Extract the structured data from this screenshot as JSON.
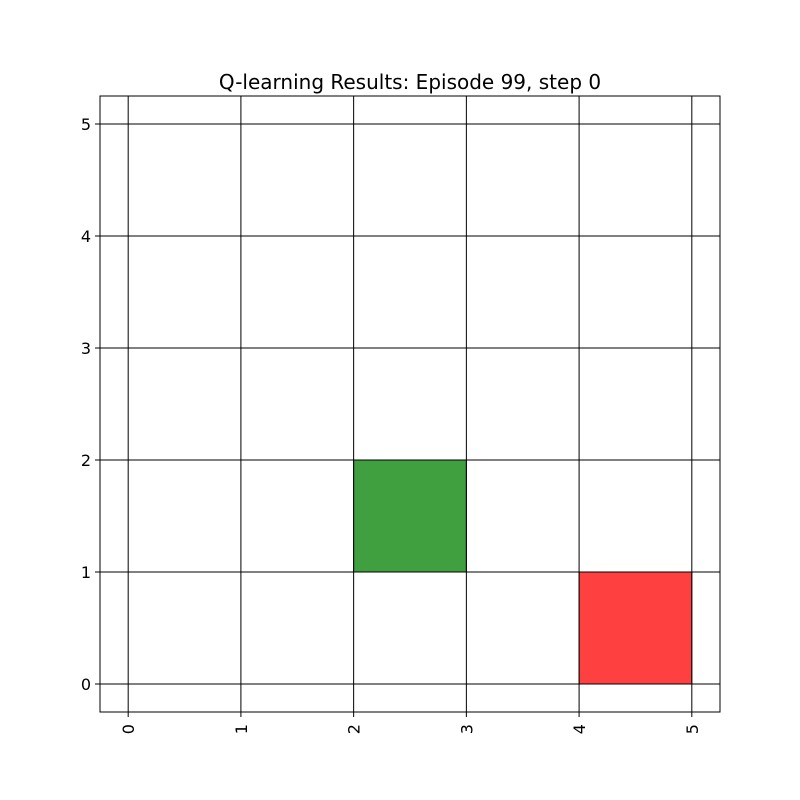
{
  "chart_data": {
    "type": "heatmap",
    "title": "Q-learning Results: Episode 99, step 0",
    "xlabel": "",
    "ylabel": "",
    "xlim": [
      -0.25,
      5.25
    ],
    "ylim": [
      -0.25,
      5.25
    ],
    "x_ticks": [
      0,
      1,
      2,
      3,
      4,
      5
    ],
    "y_ticks": [
      0,
      1,
      2,
      3,
      4,
      5
    ],
    "x_tick_rotation": "vertical",
    "grid": true,
    "cells": [
      {
        "x": 2,
        "y": 1,
        "width": 1,
        "height": 1,
        "color": "#40a040"
      },
      {
        "x": 4,
        "y": 0,
        "width": 1,
        "height": 1,
        "color": "#ff4040"
      }
    ]
  }
}
